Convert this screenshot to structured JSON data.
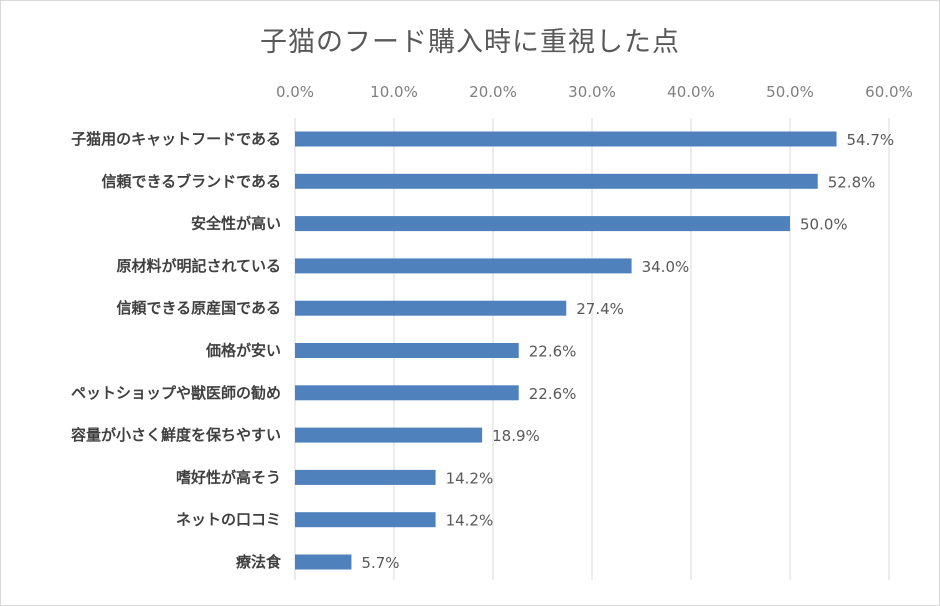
{
  "chart_data": {
    "type": "bar",
    "orientation": "horizontal",
    "title": "子猫のフード購入時に重視した点",
    "categories": [
      "子猫用のキャットフードである",
      "信頼できるブランドである",
      "安全性が高い",
      "原材料が明記されている",
      "信頼できる原産国である",
      "価格が安い",
      "ペットショップや獣医師の勧め",
      "容量が小さく鮮度を保ちやすい",
      "嗜好性が高そう",
      "ネットの口コミ",
      "療法食"
    ],
    "values": [
      54.7,
      52.8,
      50.0,
      34.0,
      27.4,
      22.6,
      22.6,
      18.9,
      14.2,
      14.2,
      5.7
    ],
    "value_labels": [
      "54.7%",
      "52.8%",
      "50.0%",
      "34.0%",
      "27.4%",
      "22.6%",
      "22.6%",
      "18.9%",
      "14.2%",
      "14.2%",
      "5.7%"
    ],
    "x_ticks": [
      "0.0%",
      "10.0%",
      "20.0%",
      "30.0%",
      "40.0%",
      "50.0%",
      "60.0%"
    ],
    "xlim": [
      0,
      60
    ],
    "xaxis_position": "top",
    "grid": "vertical",
    "bar_color": "#4f81bd",
    "grid_color": "#d9d9d9"
  }
}
